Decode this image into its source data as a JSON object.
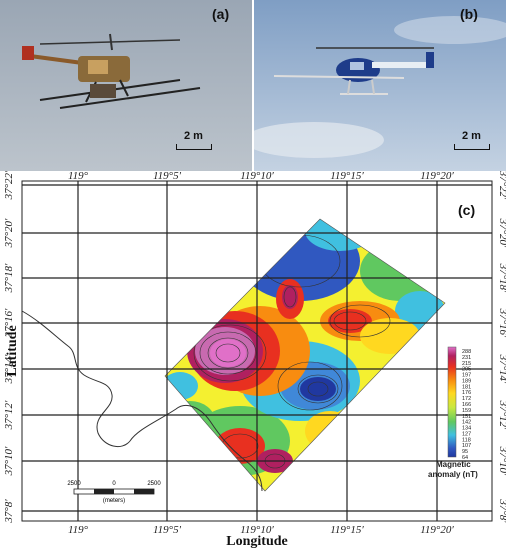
{
  "panels": {
    "a": {
      "label": "(a)",
      "scale": "2 m"
    },
    "b": {
      "label": "(b)",
      "scale": "2 m"
    },
    "c": {
      "label": "(c)"
    }
  },
  "map": {
    "top_lon": [
      "119°",
      "119°5′",
      "119°10′",
      "119°15′",
      "119°20′"
    ],
    "bottom_lon": [
      "119°",
      "119°5′",
      "119°10′",
      "119°15′",
      "119°20′"
    ],
    "left_lat": [
      "37°22′",
      "37°20′",
      "37°18′",
      "37°16′",
      "37°14′",
      "37°12′",
      "37°10′",
      "37°8′"
    ],
    "right_lat": [
      "37°22′",
      "37°20′",
      "37°18′",
      "37°16′",
      "37°14′",
      "37°12′",
      "37°10′",
      "37°8′"
    ],
    "xlabel": "Longitude",
    "ylabel": "Latitude",
    "scale_bar": {
      "ticks": [
        "2500",
        "0",
        "2500"
      ],
      "unit": "(meters)"
    },
    "legend": {
      "title_line1": "Magnetic",
      "title_line2": "anomaly (nT)",
      "values": [
        "288",
        "231",
        "215",
        "205",
        "197",
        "189",
        "181",
        "176",
        "172",
        "166",
        "159",
        "151",
        "142",
        "134",
        "127",
        "118",
        "107",
        "95",
        "64"
      ],
      "colors": [
        "#e070c8",
        "#c86ab0",
        "#b02060",
        "#d01030",
        "#e83020",
        "#f06018",
        "#f88c10",
        "#fcb010",
        "#ffd820",
        "#f4f030",
        "#c8e840",
        "#90d850",
        "#60c860",
        "#40c0a0",
        "#40c0e0",
        "#50a8e8",
        "#4088d8",
        "#3058c0",
        "#2038a0"
      ]
    }
  }
}
